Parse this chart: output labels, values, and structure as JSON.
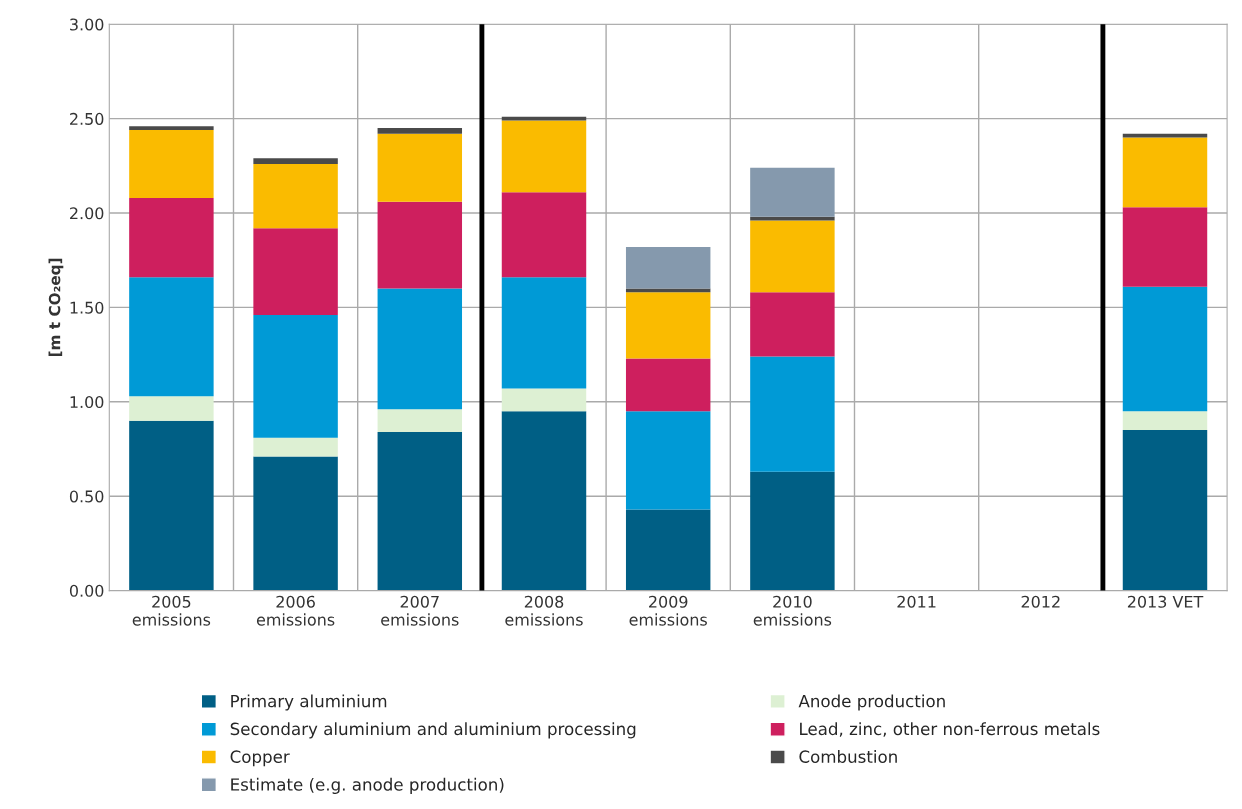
{
  "chart_data": {
    "type": "bar",
    "stacked": true,
    "ylabel": "[m t CO₂eq]",
    "categories": [
      "2005\nemissions",
      "2006\nemissions",
      "2007\nemissions",
      "2008\nemissions",
      "2009\nemissions",
      "2010\nemissions",
      "2011",
      "2012",
      "2013 VET"
    ],
    "series": [
      {
        "name": "Primary aluminium",
        "color": "#005f85",
        "values": [
          0.9,
          0.71,
          0.84,
          0.95,
          0.43,
          0.63,
          null,
          null,
          0.85
        ]
      },
      {
        "name": "Anode production",
        "color": "#ddf0d3",
        "values": [
          0.13,
          0.1,
          0.12,
          0.12,
          0,
          0,
          null,
          null,
          0.1
        ]
      },
      {
        "name": "Secondary aluminium and aluminium processing",
        "color": "#009ad6",
        "values": [
          0.63,
          0.65,
          0.64,
          0.59,
          0.52,
          0.61,
          null,
          null,
          0.66
        ]
      },
      {
        "name": "Lead, zinc, other non-ferrous metals",
        "color": "#ce1f5e",
        "values": [
          0.42,
          0.46,
          0.46,
          0.45,
          0.28,
          0.34,
          null,
          null,
          0.42
        ]
      },
      {
        "name": "Copper",
        "color": "#fabb00",
        "values": [
          0.36,
          0.34,
          0.36,
          0.38,
          0.35,
          0.38,
          null,
          null,
          0.37
        ]
      },
      {
        "name": "Combustion",
        "color": "#4a4a4a",
        "values": [
          0.02,
          0.03,
          0.03,
          0.02,
          0.02,
          0.02,
          null,
          null,
          0.02
        ]
      },
      {
        "name": "Estimate (e.g. anode production)",
        "color": "#8599ad",
        "values": [
          0,
          0,
          0,
          0,
          0.22,
          0.26,
          null,
          null,
          0
        ]
      }
    ],
    "ylim": [
      0,
      3
    ],
    "yticks": [
      {
        "value": 0,
        "label": "0.00"
      },
      {
        "value": 0.5,
        "label": "0.50"
      },
      {
        "value": 1,
        "label": "1.00"
      },
      {
        "value": 1.5,
        "label": "1.50"
      },
      {
        "value": 2,
        "label": "2.00"
      },
      {
        "value": 2.5,
        "label": "2.50"
      },
      {
        "value": 3,
        "label": "3.00"
      }
    ],
    "grid": true,
    "legend": "bottom"
  }
}
